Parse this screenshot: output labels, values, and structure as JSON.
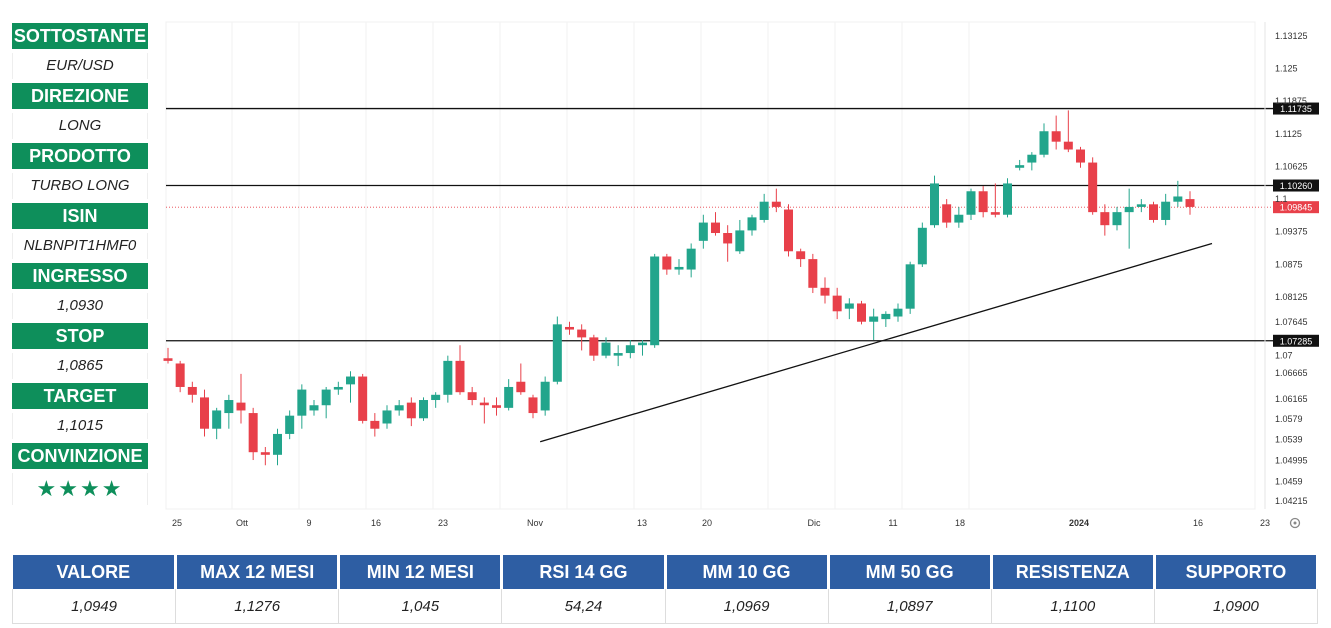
{
  "sidebar": {
    "items": [
      {
        "label": "SOTTOSTANTE",
        "value": "EUR/USD"
      },
      {
        "label": "DIREZIONE",
        "value": "LONG"
      },
      {
        "label": "PRODOTTO",
        "value": "TURBO LONG"
      },
      {
        "label": "ISIN",
        "value": "NLBNPIT1HMF0"
      },
      {
        "label": "INGRESSO",
        "value": "1,0930"
      },
      {
        "label": "STOP",
        "value": "1,0865"
      },
      {
        "label": "TARGET",
        "value": "1,1015"
      },
      {
        "label": "CONVINZIONE",
        "value": "★★★★"
      }
    ]
  },
  "stats": {
    "headers": [
      "VALORE",
      "MAX 12 MESI",
      "MIN 12 MESI",
      "RSI 14 GG",
      "MM 10 GG",
      "MM 50 GG",
      "RESISTENZA",
      "SUPPORTO"
    ],
    "values": [
      "1,0949",
      "1,1276",
      "1,045",
      "54,24",
      "1,0969",
      "1,0897",
      "1,1100",
      "1,0900"
    ]
  },
  "chart_data": {
    "type": "candlestick",
    "colors": {
      "up": "#22a58c",
      "down": "#e8404a",
      "line": "#111111"
    },
    "y_ticks": [
      1.13125,
      1.125,
      1.11875,
      1.1125,
      1.10625,
      1.1,
      1.09375,
      1.0875,
      1.08125,
      1.07645,
      1.07,
      1.06665,
      1.06165,
      1.0579,
      1.0539,
      1.04995,
      1.0459,
      1.04215
    ],
    "x_labels": [
      "25",
      "Ott",
      "9",
      "16",
      "23",
      "Nov",
      "13",
      "20",
      "Dic",
      "11",
      "18",
      "2024",
      "16",
      "23"
    ],
    "horizontal_levels": [
      {
        "value": 1.11735,
        "label": "1.11735",
        "style": "dark"
      },
      {
        "value": 1.1026,
        "label": "1.10260",
        "style": "dark"
      },
      {
        "value": 1.09845,
        "label": "1.09845",
        "style": "red"
      },
      {
        "value": 1.07285,
        "label": "1.07285",
        "style": "dark"
      }
    ],
    "trendline": [
      [
        1.0535,
        1.0915
      ]
    ],
    "candles": [
      [
        1.0695,
        1.0715,
        1.0685,
        1.069
      ],
      [
        1.0685,
        1.069,
        1.063,
        1.064
      ],
      [
        1.064,
        1.065,
        1.061,
        1.0625
      ],
      [
        1.062,
        1.0635,
        1.0545,
        1.056
      ],
      [
        1.056,
        1.06,
        1.054,
        1.0595
      ],
      [
        1.059,
        1.0625,
        1.056,
        1.0615
      ],
      [
        1.061,
        1.0665,
        1.057,
        1.0595
      ],
      [
        1.059,
        1.06,
        1.05,
        1.0515
      ],
      [
        1.0515,
        1.0525,
        1.049,
        1.051
      ],
      [
        1.051,
        1.056,
        1.049,
        1.055
      ],
      [
        1.055,
        1.0595,
        1.054,
        1.0585
      ],
      [
        1.0585,
        1.0645,
        1.056,
        1.0635
      ],
      [
        1.0595,
        1.0615,
        1.0585,
        1.0605
      ],
      [
        1.0605,
        1.064,
        1.058,
        1.0635
      ],
      [
        1.0635,
        1.065,
        1.0625,
        1.064
      ],
      [
        1.0645,
        1.067,
        1.061,
        1.066
      ],
      [
        1.066,
        1.0665,
        1.057,
        1.0575
      ],
      [
        1.0575,
        1.059,
        1.0545,
        1.056
      ],
      [
        1.057,
        1.0605,
        1.056,
        1.0595
      ],
      [
        1.0595,
        1.0615,
        1.0585,
        1.0605
      ],
      [
        1.061,
        1.062,
        1.0565,
        1.058
      ],
      [
        1.058,
        1.062,
        1.0575,
        1.0615
      ],
      [
        1.0615,
        1.063,
        1.06,
        1.0625
      ],
      [
        1.0625,
        1.07,
        1.061,
        1.069
      ],
      [
        1.069,
        1.072,
        1.0625,
        1.063
      ],
      [
        1.063,
        1.064,
        1.0605,
        1.0615
      ],
      [
        1.061,
        1.062,
        1.057,
        1.0605
      ],
      [
        1.0605,
        1.062,
        1.0585,
        1.06
      ],
      [
        1.06,
        1.0655,
        1.0595,
        1.064
      ],
      [
        1.065,
        1.0685,
        1.0625,
        1.063
      ],
      [
        1.062,
        1.0625,
        1.058,
        1.059
      ],
      [
        1.0595,
        1.066,
        1.0585,
        1.065
      ],
      [
        1.065,
        1.0775,
        1.0645,
        1.076
      ],
      [
        1.0755,
        1.0765,
        1.074,
        1.075
      ],
      [
        1.075,
        1.076,
        1.071,
        1.0735
      ],
      [
        1.0735,
        1.074,
        1.069,
        1.07
      ],
      [
        1.07,
        1.0735,
        1.0695,
        1.0725
      ],
      [
        1.07,
        1.072,
        1.068,
        1.0705
      ],
      [
        1.0705,
        1.073,
        1.0695,
        1.072
      ],
      [
        1.072,
        1.073,
        1.07,
        1.0725
      ],
      [
        1.072,
        1.0895,
        1.0715,
        1.089
      ],
      [
        1.089,
        1.0895,
        1.0855,
        1.0865
      ],
      [
        1.0865,
        1.0885,
        1.0855,
        1.087
      ],
      [
        1.0865,
        1.0915,
        1.085,
        1.0905
      ],
      [
        1.092,
        1.097,
        1.0905,
        1.0955
      ],
      [
        1.0955,
        1.0975,
        1.093,
        1.0935
      ],
      [
        1.0935,
        1.095,
        1.088,
        1.0915
      ],
      [
        1.09,
        1.096,
        1.0895,
        1.094
      ],
      [
        1.094,
        1.097,
        1.093,
        1.0965
      ],
      [
        1.096,
        1.101,
        1.0955,
        1.0995
      ],
      [
        1.0995,
        1.102,
        1.0975,
        1.0985
      ],
      [
        1.098,
        1.099,
        1.089,
        1.09
      ],
      [
        1.09,
        1.0905,
        1.087,
        1.0885
      ],
      [
        1.0885,
        1.0895,
        1.082,
        1.083
      ],
      [
        1.083,
        1.085,
        1.08,
        1.0815
      ],
      [
        1.0815,
        1.083,
        1.077,
        1.0785
      ],
      [
        1.079,
        1.081,
        1.077,
        1.08
      ],
      [
        1.08,
        1.0805,
        1.076,
        1.0765
      ],
      [
        1.0765,
        1.079,
        1.073,
        1.0775
      ],
      [
        1.077,
        1.0785,
        1.0755,
        1.078
      ],
      [
        1.0775,
        1.08,
        1.0765,
        1.079
      ],
      [
        1.079,
        1.088,
        1.078,
        1.0875
      ],
      [
        1.0875,
        1.0955,
        1.087,
        1.0945
      ],
      [
        1.095,
        1.1045,
        1.0945,
        1.103
      ],
      [
        1.099,
        1.1,
        1.0945,
        1.0955
      ],
      [
        1.0955,
        1.0985,
        1.0945,
        1.097
      ],
      [
        1.097,
        1.102,
        1.096,
        1.1015
      ],
      [
        1.1015,
        1.1025,
        1.0965,
        1.0975
      ],
      [
        1.0975,
        1.103,
        1.0965,
        1.097
      ],
      [
        1.097,
        1.104,
        1.0965,
        1.103
      ],
      [
        1.106,
        1.1075,
        1.1055,
        1.1065
      ],
      [
        1.107,
        1.109,
        1.1055,
        1.1085
      ],
      [
        1.1085,
        1.1145,
        1.108,
        1.113
      ],
      [
        1.113,
        1.116,
        1.1095,
        1.111
      ],
      [
        1.111,
        1.117,
        1.109,
        1.1095
      ],
      [
        1.1095,
        1.11,
        1.106,
        1.107
      ],
      [
        1.107,
        1.108,
        1.097,
        1.0975
      ],
      [
        1.0975,
        1.099,
        1.093,
        1.095
      ],
      [
        1.095,
        1.0985,
        1.094,
        1.0975
      ],
      [
        1.0975,
        1.102,
        1.0905,
        1.0985
      ],
      [
        1.0985,
        1.1,
        1.0975,
        1.099
      ],
      [
        1.099,
        1.0995,
        1.0955,
        1.096
      ],
      [
        1.096,
        1.101,
        1.095,
        1.0995
      ],
      [
        1.0995,
        1.1035,
        1.0985,
        1.1005
      ],
      [
        1.1,
        1.1015,
        1.097,
        1.0985
      ]
    ]
  }
}
